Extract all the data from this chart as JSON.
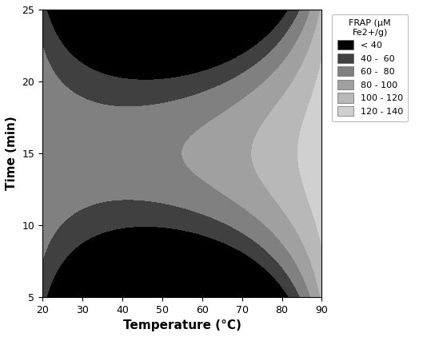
{
  "xlabel": "Temperature (°C)",
  "ylabel": "Time (min)",
  "xlim": [
    20,
    90
  ],
  "ylim": [
    5,
    25
  ],
  "xticks": [
    20,
    30,
    40,
    50,
    60,
    70,
    80,
    90
  ],
  "yticks": [
    5,
    10,
    15,
    20,
    25
  ],
  "legend_title": "FRAP (μM\nFe2+/g)",
  "legend_labels": [
    "< 40",
    "40 -  60",
    "60 -  80",
    "80 - 100",
    "100 - 120",
    "120 - 140"
  ],
  "legend_colors": [
    "#000000",
    "#404040",
    "#808080",
    "#a0a0a0",
    "#b8b8b8",
    "#d0d0d0"
  ],
  "levels": [
    0,
    40,
    60,
    80,
    100,
    120,
    140,
    200
  ],
  "fill_colors": [
    "#000000",
    "#404040",
    "#808080",
    "#a0a0a0",
    "#b8b8b8",
    "#d0d0d0",
    "#e8e8e8"
  ],
  "figsize": [
    5.59,
    4.22
  ],
  "dpi": 100,
  "model": {
    "c0": 90,
    "c1": 0.5,
    "c2": 0.0,
    "c11": 0.04,
    "c22": -0.8,
    "c12": 0.06,
    "T0": 55,
    "Ti0": 15
  }
}
